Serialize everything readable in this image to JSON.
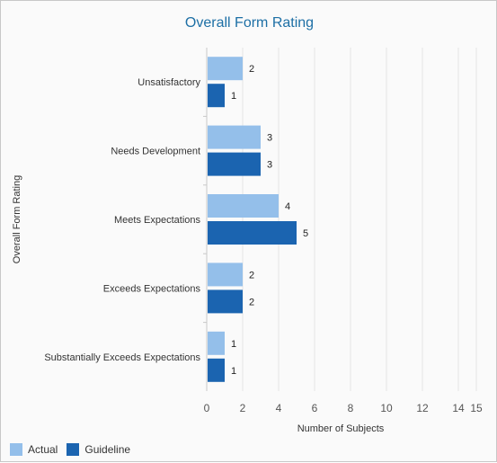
{
  "chart_data": {
    "type": "bar",
    "orientation": "horizontal",
    "title": "Overall Form Rating",
    "xlabel": "Number of Subjects",
    "ylabel": "Overall Form Rating",
    "categories": [
      "Unsatisfactory",
      "Needs Development",
      "Meets Expectations",
      "Exceeds Expectations",
      "Substantially Exceeds Expectations"
    ],
    "series": [
      {
        "name": "Actual",
        "color": "#94bfea",
        "values": [
          2,
          3,
          4,
          2,
          1
        ]
      },
      {
        "name": "Guideline",
        "color": "#1b64b0",
        "values": [
          1,
          3,
          5,
          2,
          1
        ]
      }
    ],
    "xlim": [
      0,
      15
    ],
    "xticks": [
      0,
      2,
      4,
      6,
      8,
      10,
      12,
      14,
      15
    ],
    "grid": true,
    "legend_position": "bottom-left",
    "data_labels": true
  }
}
